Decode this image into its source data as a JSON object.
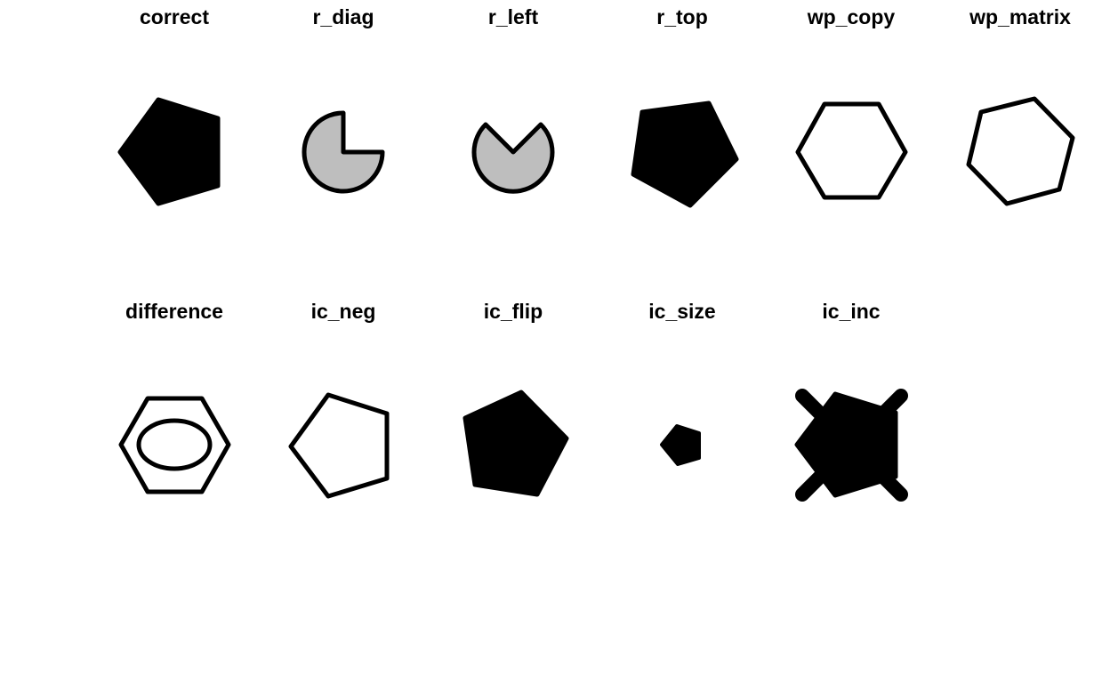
{
  "panels": [
    {
      "id": "correct",
      "title": "correct",
      "fill": "#000000"
    },
    {
      "id": "r_diag",
      "title": "r_diag",
      "fill": "#bebebe"
    },
    {
      "id": "r_left",
      "title": "r_left",
      "fill": "#bebebe"
    },
    {
      "id": "r_top",
      "title": "r_top",
      "fill": "#000000"
    },
    {
      "id": "wp_copy",
      "title": "wp_copy",
      "fill": "#ffffff"
    },
    {
      "id": "wp_matrix",
      "title": "wp_matrix",
      "fill": "#ffffff"
    },
    {
      "id": "difference",
      "title": "difference",
      "fill": "#ffffff"
    },
    {
      "id": "ic_neg",
      "title": "ic_neg",
      "fill": "#ffffff"
    },
    {
      "id": "ic_flip",
      "title": "ic_flip",
      "fill": "#000000"
    },
    {
      "id": "ic_size",
      "title": "ic_size",
      "fill": "#000000"
    },
    {
      "id": "ic_inc",
      "title": "ic_inc",
      "fill": "#000000"
    }
  ],
  "colors": {
    "stroke": "#000000",
    "gray": "#bebebe",
    "background": "#ffffff"
  }
}
